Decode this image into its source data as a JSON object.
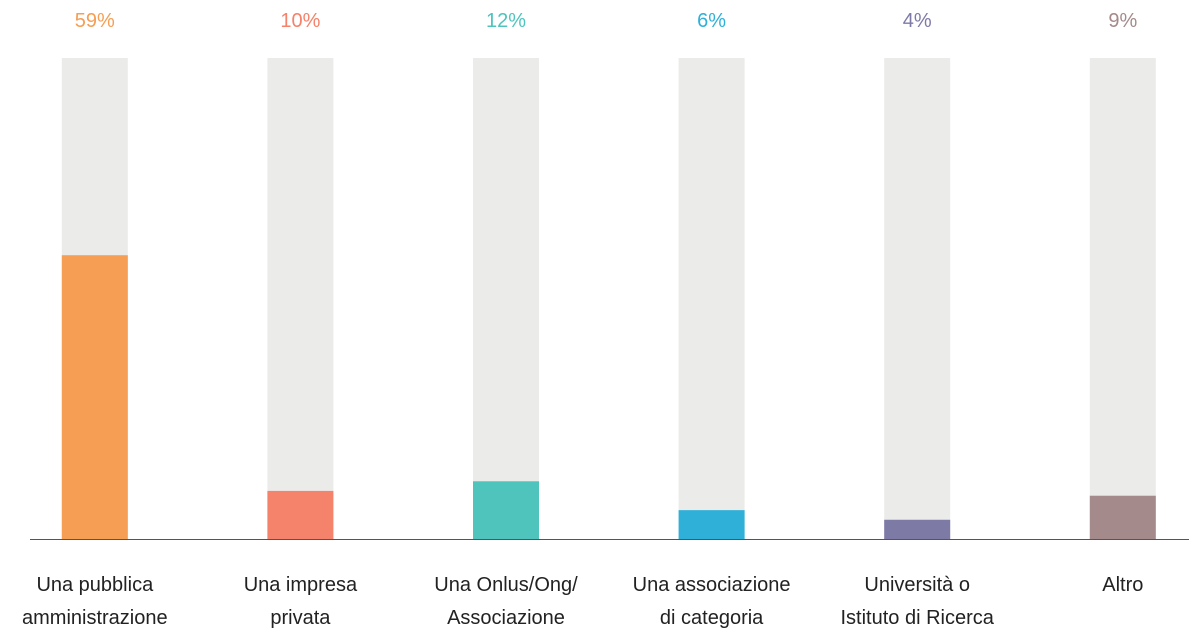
{
  "chart_data": {
    "type": "bar",
    "categories": [
      "Una pubblica\namministrazione",
      "Una impresa\nprivata",
      "Una Onlus/Ong/\nAssociazione",
      "Una associazione\ndi categoria",
      "Università o\nIstituto di Ricerca",
      "Altro"
    ],
    "values": [
      59,
      10,
      12,
      6,
      4,
      9
    ],
    "value_labels": [
      "59%",
      "10%",
      "12%",
      "6%",
      "4%",
      "9%"
    ],
    "colors": [
      "#f59e54",
      "#f5826a",
      "#4ec4bd",
      "#2fb0d8",
      "#7e7aa6",
      "#a48a8a"
    ],
    "ylim": [
      0,
      100
    ]
  }
}
